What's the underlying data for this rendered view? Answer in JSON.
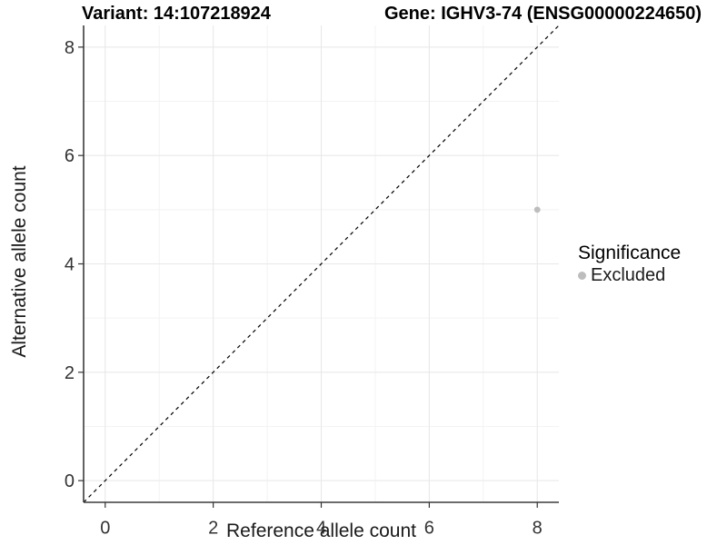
{
  "titles": {
    "variant": "Variant: 14:107218924",
    "gene": "Gene: IGHV3-74 (ENSG00000224650)"
  },
  "chart_data": {
    "type": "scatter",
    "title_left": "Variant: 14:107218924",
    "title_right": "Gene: IGHV3-74 (ENSG00000224650)",
    "xlabel": "Reference allele count",
    "ylabel": "Alternative allele count",
    "xlim": [
      -0.4,
      8.4
    ],
    "ylim": [
      -0.4,
      8.4
    ],
    "x_ticks": [
      0,
      2,
      4,
      6,
      8
    ],
    "y_ticks": [
      0,
      2,
      4,
      6,
      8
    ],
    "x_minor_ticks": [
      1,
      3,
      5,
      7
    ],
    "y_minor_ticks": [
      1,
      3,
      5,
      7
    ],
    "grid": true,
    "points": [
      {
        "x": 8,
        "y": 5,
        "series": "Excluded"
      }
    ],
    "reference_line": {
      "type": "identity",
      "style": "dashed"
    },
    "legend": {
      "title": "Significance",
      "position": "right",
      "entries": [
        {
          "label": "Excluded",
          "color": "#bdbdbd"
        }
      ]
    },
    "colors": {
      "background": "#ffffff",
      "grid_major": "#e8e8e8",
      "grid_minor": "#f3f3f3",
      "axis_line": "#3c3c3c",
      "tick_mark": "#333333",
      "tick_text": "#333333",
      "ref_line": "#000000",
      "point": "#bdbdbd"
    }
  }
}
